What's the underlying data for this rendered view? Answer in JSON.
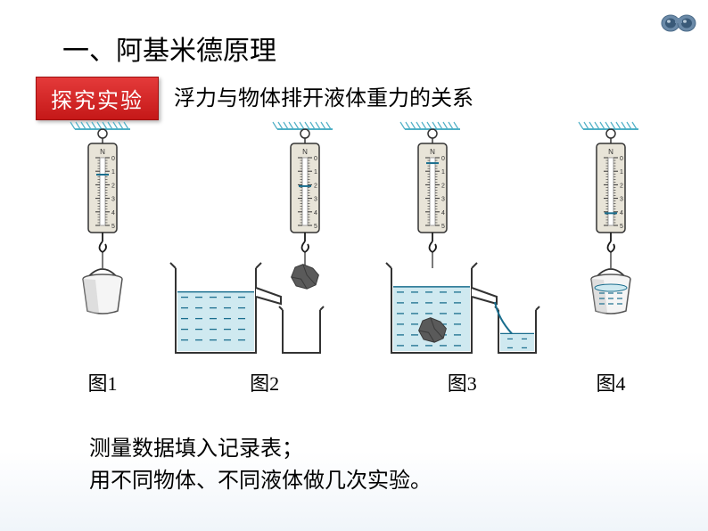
{
  "heading": "一、阿基米德原理",
  "badge": "探究实验",
  "subtitle": "浮力与物体排开液体重力的关系",
  "figures": {
    "labels": [
      "图1",
      "图2",
      "图3",
      "图4"
    ],
    "scale_body_fill": "#e8e4d8",
    "scale_body_stroke": "#333333",
    "scale_tick_color": "#333333",
    "scale_label_color": "#333333",
    "scale_numbers": [
      "0",
      "1",
      "2",
      "3",
      "4",
      "5"
    ],
    "hook_color": "#1a1a1a",
    "ceiling_color": "#4fb0c6",
    "ceiling_hatch_color": "#4fb0c6",
    "bucket_fill": "#f5f5f5",
    "bucket_stroke": "#555555",
    "bucket_shade": "#c8c8c8",
    "water_stroke": "#1a6e8e",
    "water_fill": "#cfe9f0",
    "rock_fill": "#5a5a5a",
    "rock_shade": "#3a3a3a",
    "beaker_fill": "#ffffff",
    "beaker_stroke": "#333333",
    "pointer_color": "#1a6e8e",
    "pointer_positions": [
      0.25,
      0.42,
      0.08,
      0.82
    ]
  },
  "bottom_lines": [
    "测量数据填入记录表；",
    "用不同物体、不同液体做几次实验。"
  ],
  "binoculars_colors": {
    "body": "#6b8aa8",
    "lens": "#3a5a78",
    "highlight": "#b8cad8"
  }
}
